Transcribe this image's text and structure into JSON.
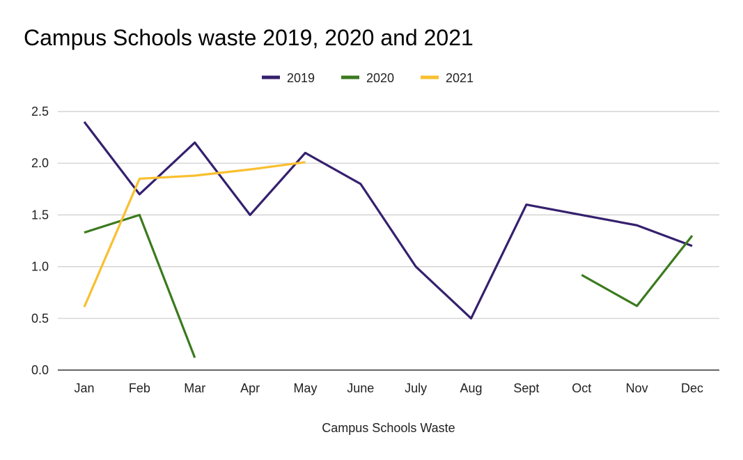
{
  "chart_data": {
    "type": "line",
    "title": "Campus Schools waste 2019, 2020 and 2021",
    "xlabel": "Campus Schools Waste",
    "ylabel": "",
    "categories": [
      "Jan",
      "Feb",
      "Mar",
      "Apr",
      "May",
      "June",
      "July",
      "Aug",
      "Sept",
      "Oct",
      "Nov",
      "Dec"
    ],
    "ylim": [
      0,
      2.5
    ],
    "yticks": [
      "0.0",
      "0.5",
      "1.0",
      "1.5",
      "2.0",
      "2.5"
    ],
    "grid": true,
    "legend_position": "top",
    "series": [
      {
        "name": "2019",
        "color": "#35206e",
        "values": [
          2.4,
          1.7,
          2.2,
          1.5,
          2.1,
          1.8,
          1.0,
          0.5,
          1.6,
          1.5,
          1.4,
          1.2
        ]
      },
      {
        "name": "2020",
        "color": "#3b7a1e",
        "values": [
          1.33,
          1.5,
          0.12,
          null,
          null,
          null,
          null,
          null,
          null,
          0.92,
          0.62,
          1.3
        ]
      },
      {
        "name": "2021",
        "color": "#f9bf2f",
        "values": [
          0.61,
          1.85,
          1.88,
          1.94,
          2.01,
          null,
          null,
          null,
          null,
          null,
          null,
          null
        ]
      }
    ]
  }
}
